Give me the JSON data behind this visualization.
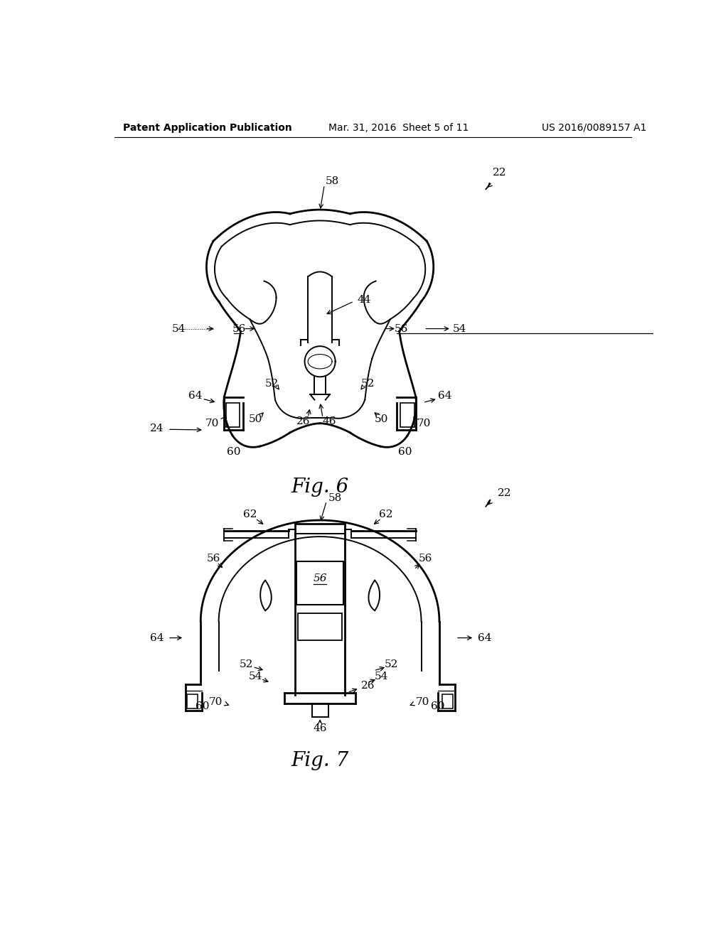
{
  "background_color": "#ffffff",
  "header_left": "Patent Application Publication",
  "header_middle": "Mar. 31, 2016  Sheet 5 of 11",
  "header_right": "US 2016/0089157 A1",
  "fig6_label": "Fig. 6",
  "fig7_label": "Fig. 7",
  "header_font_size": 10,
  "fig_label_font_size": 20,
  "annotation_font_size": 11
}
